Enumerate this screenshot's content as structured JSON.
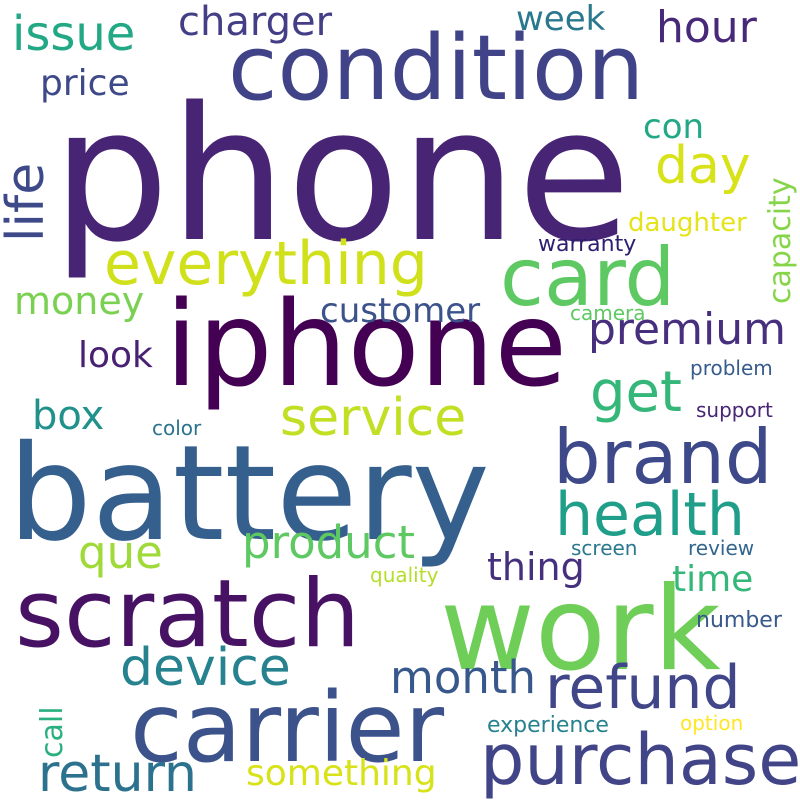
{
  "words": [
    {
      "text": "phone",
      "color": "#482475"
    },
    {
      "text": "condition",
      "color": "#404387"
    },
    {
      "text": "iphone",
      "color": "#440154"
    },
    {
      "text": "battery",
      "color": "#355f8d"
    },
    {
      "text": "work",
      "color": "#6ece58"
    },
    {
      "text": "scratch",
      "color": "#471164"
    },
    {
      "text": "carrier",
      "color": "#3b528b"
    },
    {
      "text": "card",
      "color": "#5ec962"
    },
    {
      "text": "everything",
      "color": "#d0e11c"
    },
    {
      "text": "brand",
      "color": "#3e4989"
    },
    {
      "text": "purchase",
      "color": "#414487"
    },
    {
      "text": "refund",
      "color": "#404688"
    },
    {
      "text": "health",
      "color": "#1f9e89"
    },
    {
      "text": "service",
      "color": "#c2df23"
    },
    {
      "text": "device",
      "color": "#26828e"
    },
    {
      "text": "return",
      "color": "#2c728e"
    },
    {
      "text": "issue",
      "color": "#22a884"
    },
    {
      "text": "life",
      "color": "#3e4989"
    },
    {
      "text": "day",
      "color": "#d8e219"
    },
    {
      "text": "premium",
      "color": "#472f7d"
    },
    {
      "text": "product",
      "color": "#5ec962"
    },
    {
      "text": "month",
      "color": "#38588c"
    },
    {
      "text": "get",
      "color": "#35b779"
    },
    {
      "text": "que",
      "color": "#a0da39"
    },
    {
      "text": "charger",
      "color": "#433e85"
    },
    {
      "text": "hour",
      "color": "#482878"
    },
    {
      "text": "box",
      "color": "#21918c"
    },
    {
      "text": "something",
      "color": "#d8e219"
    },
    {
      "text": "thing",
      "color": "#46307e"
    },
    {
      "text": "money",
      "color": "#7ad151"
    },
    {
      "text": "customer",
      "color": "#3b528b"
    },
    {
      "text": "time",
      "color": "#35b779"
    },
    {
      "text": "price",
      "color": "#3e4989"
    },
    {
      "text": "look",
      "color": "#482173"
    },
    {
      "text": "week",
      "color": "#2a788e"
    },
    {
      "text": "con",
      "color": "#22a884"
    },
    {
      "text": "capacity",
      "color": "#86d549"
    },
    {
      "text": "call",
      "color": "#2ab07f"
    },
    {
      "text": "daughter",
      "color": "#e5e419"
    },
    {
      "text": "warranty",
      "color": "#2d1e6e"
    },
    {
      "text": "camera",
      "color": "#5ec962"
    },
    {
      "text": "problem",
      "color": "#365c8d"
    },
    {
      "text": "support",
      "color": "#482475"
    },
    {
      "text": "color",
      "color": "#2c728e"
    },
    {
      "text": "screen",
      "color": "#2a788e"
    },
    {
      "text": "review",
      "color": "#31668e"
    },
    {
      "text": "quality",
      "color": "#b5de2b"
    },
    {
      "text": "number",
      "color": "#38598c"
    },
    {
      "text": "experience",
      "color": "#26828e"
    },
    {
      "text": "option",
      "color": "#fde725"
    }
  ]
}
